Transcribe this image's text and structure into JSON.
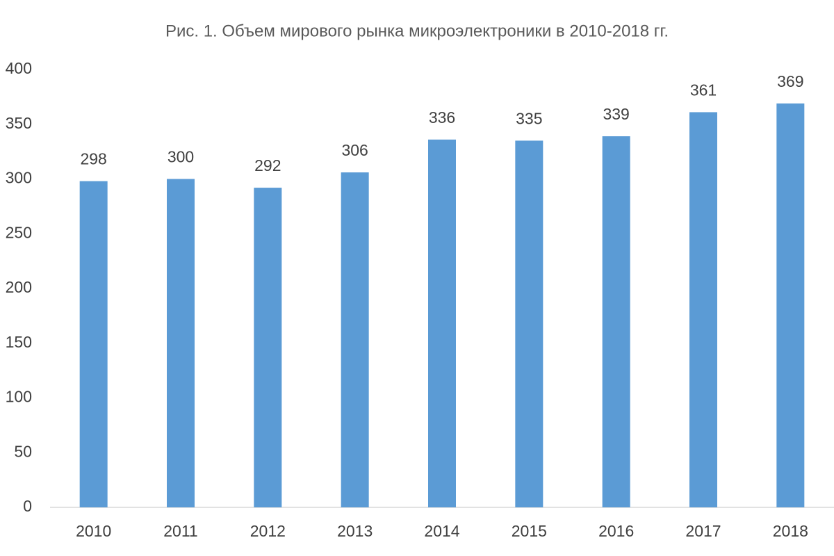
{
  "chart_data": {
    "type": "bar",
    "title": "Рис. 1. Объем мирового  рынка микроэлектроники  в 2010-2018  гг.",
    "categories": [
      "2010",
      "2011",
      "2012",
      "2013",
      "2014",
      "2015",
      "2016",
      "2017",
      "2018"
    ],
    "values": [
      298,
      300,
      292,
      306,
      336,
      335,
      339,
      361,
      369
    ],
    "color": "#5b9bd5",
    "ylim": [
      0,
      400
    ],
    "yticks": [
      0,
      50,
      100,
      150,
      200,
      250,
      300,
      350,
      400
    ],
    "grid": false,
    "data_labels": true
  }
}
